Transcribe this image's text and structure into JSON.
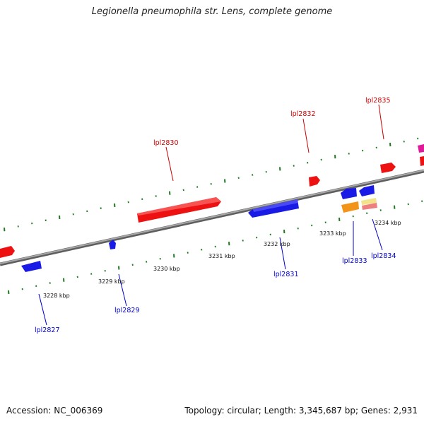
{
  "title": "Legionella pneumophila str. Lens, complete genome",
  "footer": {
    "accession": "Accession: NC_006369",
    "summary": "Topology: circular; Length: 3,345,687 bp; Genes: 2,931"
  },
  "colors": {
    "backbone": "#8a8a8a",
    "tick": "#1f7a1f",
    "forward_gene": "#ee1111",
    "reverse_gene": "#1a1ae6",
    "forward_label": "#cc0000",
    "reverse_label": "#0000cc"
  },
  "kbp_labels": [
    "3228 kbp",
    "3229 kbp",
    "3230 kbp",
    "3231 kbp",
    "3232 kbp",
    "3233 kbp",
    "3234 kbp"
  ],
  "gene_labels": [
    {
      "id": "lpl2830",
      "text": "lpl2830",
      "strand": "forward"
    },
    {
      "id": "lpl2832",
      "text": "lpl2832",
      "strand": "forward"
    },
    {
      "id": "lpl2835",
      "text": "lpl2835",
      "strand": "forward"
    },
    {
      "id": "lpl2827",
      "text": "lpl2827",
      "strand": "reverse"
    },
    {
      "id": "lpl2829",
      "text": "lpl2829",
      "strand": "reverse"
    },
    {
      "id": "lpl2831",
      "text": "lpl2831",
      "strand": "reverse"
    },
    {
      "id": "lpl2833",
      "text": "lpl2833",
      "strand": "reverse"
    },
    {
      "id": "lpl2834",
      "text": "lpl2834",
      "strand": "reverse"
    }
  ]
}
